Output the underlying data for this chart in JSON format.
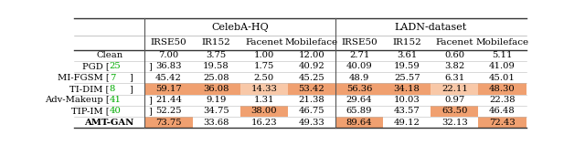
{
  "figsize": [
    6.4,
    1.59
  ],
  "dpi": 100,
  "header1": [
    "CelebA-HQ",
    "LADN-dataset"
  ],
  "header2": [
    "IRSE50",
    "IR152",
    "Facenet",
    "Mobileface",
    "IRSE50",
    "IR152",
    "Facenet",
    "Mobileface"
  ],
  "rows": [
    {
      "label": "Clean",
      "cite": "",
      "data": [
        "7.00",
        "3.75",
        "1.00",
        "12.00",
        "2.71",
        "3.61",
        "0.60",
        "5.11"
      ]
    },
    {
      "label": "PGD",
      "cite": "25",
      "data": [
        "36.83",
        "19.58",
        "1.75",
        "40.92",
        "40.09",
        "19.59",
        "3.82",
        "41.09"
      ]
    },
    {
      "label": "MI-FGSM",
      "cite": "7",
      "data": [
        "45.42",
        "25.08",
        "2.50",
        "45.25",
        "48.9",
        "25.57",
        "6.31",
        "45.01"
      ]
    },
    {
      "label": "TI-DIM",
      "cite": "8",
      "data": [
        "59.17",
        "36.08",
        "14.33",
        "53.42",
        "56.36",
        "34.18",
        "22.11",
        "48.30"
      ]
    },
    {
      "label": "Adv-Makeup",
      "cite": "41",
      "data": [
        "21.44",
        "9.19",
        "1.31",
        "21.38",
        "29.64",
        "10.03",
        "0.97",
        "22.38"
      ]
    },
    {
      "label": "TIP-IM",
      "cite": "40",
      "data": [
        "52.25",
        "34.75",
        "38.00",
        "46.75",
        "65.89",
        "43.57",
        "63.50",
        "46.48"
      ]
    },
    {
      "label": "AMT-GAN",
      "cite": "",
      "data": [
        "73.75",
        "33.68",
        "16.23",
        "49.33",
        "89.64",
        "49.12",
        "32.13",
        "72.43"
      ]
    }
  ],
  "orange_dark": "#F0A070",
  "orange_light": "#F8C8A8",
  "highlights": {
    "3": {
      "dark": [
        1,
        2,
        4,
        5,
        6,
        8
      ],
      "light": [
        3,
        7
      ]
    },
    "5": {
      "dark": [
        3,
        7
      ],
      "light": []
    },
    "6": {
      "dark": [
        1,
        5,
        8
      ],
      "light": []
    },
    "full_rows": []
  },
  "font_family": "DejaVu Serif",
  "fs_header1": 8.0,
  "fs_header2": 7.5,
  "fs_data": 7.2,
  "cite_color": "#00AA00"
}
